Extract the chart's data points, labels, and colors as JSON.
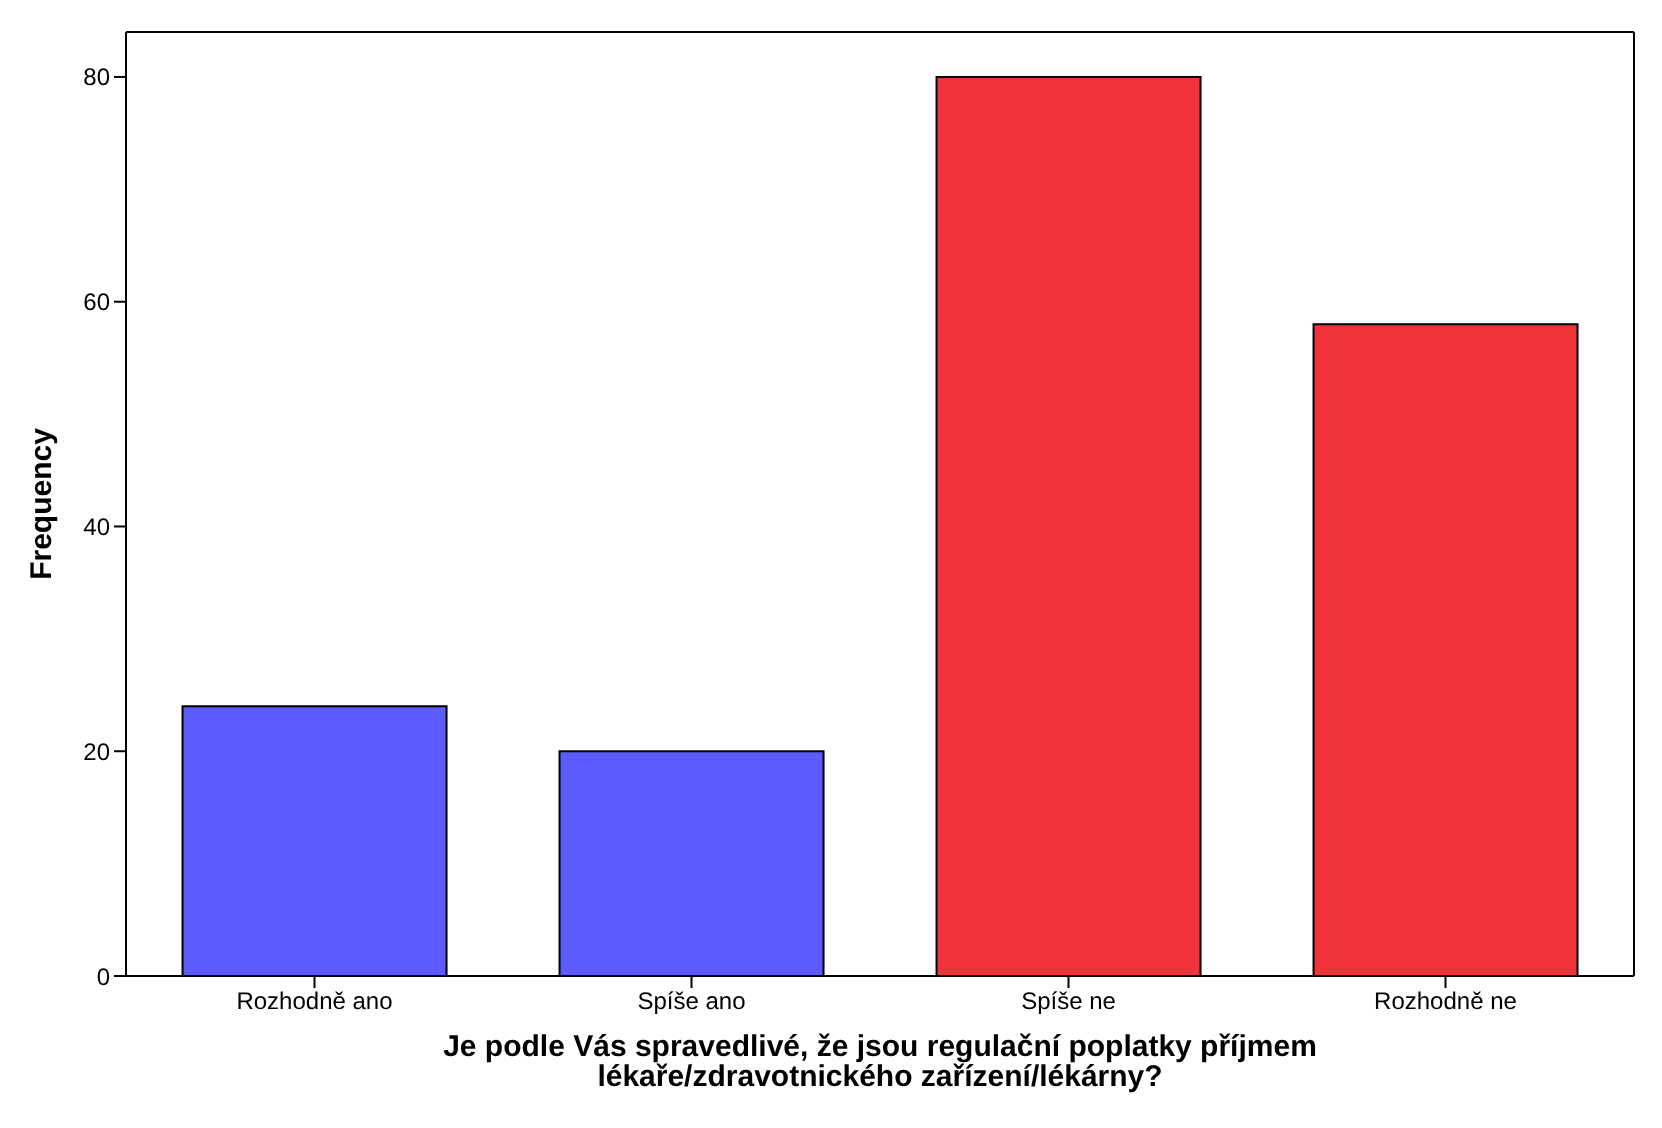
{
  "chart_data": {
    "type": "bar",
    "xlabel": "Je podle Vás spravedlivé, že jsou regulační poplatky příjmem lékaře/zdravotnického zařízení/lékárny?",
    "ylabel": "Frequency",
    "categories": [
      "Rozhodně ano",
      "Spíše ano",
      "Spíše ne",
      "Rozhodně ne"
    ],
    "values": [
      24,
      20,
      80,
      58
    ],
    "colors": [
      "#5b5bff",
      "#5b5bff",
      "#ef333b",
      "#ef333b"
    ],
    "ylim": [
      0,
      84
    ],
    "yticks": [
      0,
      20,
      40,
      60,
      80
    ],
    "grid": false,
    "legend": false
  }
}
